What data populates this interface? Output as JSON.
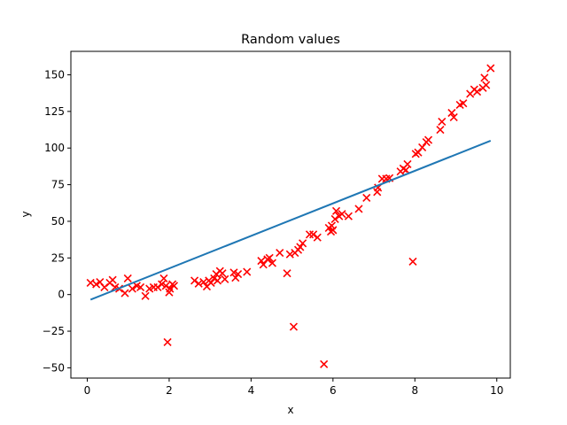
{
  "chart_data": {
    "type": "scatter",
    "title": "Random values",
    "xlabel": "x",
    "ylabel": "y",
    "xlim": [
      -0.4,
      10.33
    ],
    "ylim": [
      -57,
      166
    ],
    "xticks": [
      0,
      2,
      4,
      6,
      8,
      10
    ],
    "yticks": [
      -50,
      -25,
      0,
      25,
      50,
      75,
      100,
      125,
      150
    ],
    "grid": false,
    "colors": {
      "scatter": "#ff0000",
      "line": "#1f77b4"
    },
    "series": [
      {
        "type": "scatter",
        "marker": "x",
        "points": [
          [
            0.08,
            8
          ],
          [
            0.22,
            7
          ],
          [
            0.31,
            8.5
          ],
          [
            0.42,
            5
          ],
          [
            0.55,
            8
          ],
          [
            0.62,
            10
          ],
          [
            0.68,
            5
          ],
          [
            0.78,
            4
          ],
          [
            0.92,
            1
          ],
          [
            0.99,
            11
          ],
          [
            1.1,
            4
          ],
          [
            1.21,
            6
          ],
          [
            1.3,
            5
          ],
          [
            1.42,
            -1
          ],
          [
            1.52,
            4
          ],
          [
            1.62,
            5
          ],
          [
            1.72,
            5
          ],
          [
            1.82,
            7
          ],
          [
            1.87,
            11
          ],
          [
            1.92,
            6
          ],
          [
            1.96,
            -32.5
          ],
          [
            2.0,
            1.5
          ],
          [
            2.02,
            4
          ],
          [
            2.08,
            7
          ],
          [
            2.12,
            6
          ],
          [
            2.62,
            9.5
          ],
          [
            2.72,
            7.5
          ],
          [
            2.84,
            8.5
          ],
          [
            2.92,
            5.5
          ],
          [
            2.97,
            9.5
          ],
          [
            3.02,
            8
          ],
          [
            3.1,
            11
          ],
          [
            3.15,
            14
          ],
          [
            3.18,
            9.5
          ],
          [
            3.24,
            16
          ],
          [
            3.3,
            14.5
          ],
          [
            3.36,
            10.5
          ],
          [
            3.58,
            15
          ],
          [
            3.62,
            11.5
          ],
          [
            3.68,
            14
          ],
          [
            3.9,
            15.5
          ],
          [
            4.25,
            23
          ],
          [
            4.3,
            20.5
          ],
          [
            4.4,
            24
          ],
          [
            4.45,
            25
          ],
          [
            4.52,
            21.5
          ],
          [
            4.7,
            28.5
          ],
          [
            4.88,
            14.5
          ],
          [
            4.95,
            27.5
          ],
          [
            5.04,
            -22
          ],
          [
            5.07,
            28.5
          ],
          [
            5.15,
            30.5
          ],
          [
            5.2,
            32.5
          ],
          [
            5.26,
            35
          ],
          [
            5.43,
            41
          ],
          [
            5.52,
            41
          ],
          [
            5.62,
            39
          ],
          [
            5.78,
            -47.5
          ],
          [
            5.9,
            45.5
          ],
          [
            5.95,
            43
          ],
          [
            5.97,
            47
          ],
          [
            6.0,
            44
          ],
          [
            6.05,
            51.5
          ],
          [
            6.08,
            57
          ],
          [
            6.15,
            53.5
          ],
          [
            6.22,
            55
          ],
          [
            6.38,
            53.5
          ],
          [
            6.63,
            58.5
          ],
          [
            6.82,
            66
          ],
          [
            7.08,
            70
          ],
          [
            7.1,
            73
          ],
          [
            7.2,
            79
          ],
          [
            7.3,
            79
          ],
          [
            7.38,
            79.5
          ],
          [
            7.65,
            84
          ],
          [
            7.72,
            86
          ],
          [
            7.78,
            85
          ],
          [
            7.82,
            89
          ],
          [
            7.95,
            22.5
          ],
          [
            8.02,
            96
          ],
          [
            8.08,
            97
          ],
          [
            8.18,
            100.5
          ],
          [
            8.28,
            104
          ],
          [
            8.33,
            105.5
          ],
          [
            8.62,
            112.5
          ],
          [
            8.66,
            118
          ],
          [
            8.9,
            124
          ],
          [
            8.95,
            121
          ],
          [
            9.1,
            129.5
          ],
          [
            9.18,
            130.5
          ],
          [
            9.35,
            137
          ],
          [
            9.45,
            140
          ],
          [
            9.52,
            138.5
          ],
          [
            9.66,
            141
          ],
          [
            9.7,
            148
          ],
          [
            9.74,
            143
          ],
          [
            9.85,
            154.5
          ]
        ]
      },
      {
        "type": "line",
        "points": [
          [
            0.08,
            -3.5
          ],
          [
            9.85,
            105
          ]
        ]
      }
    ]
  }
}
